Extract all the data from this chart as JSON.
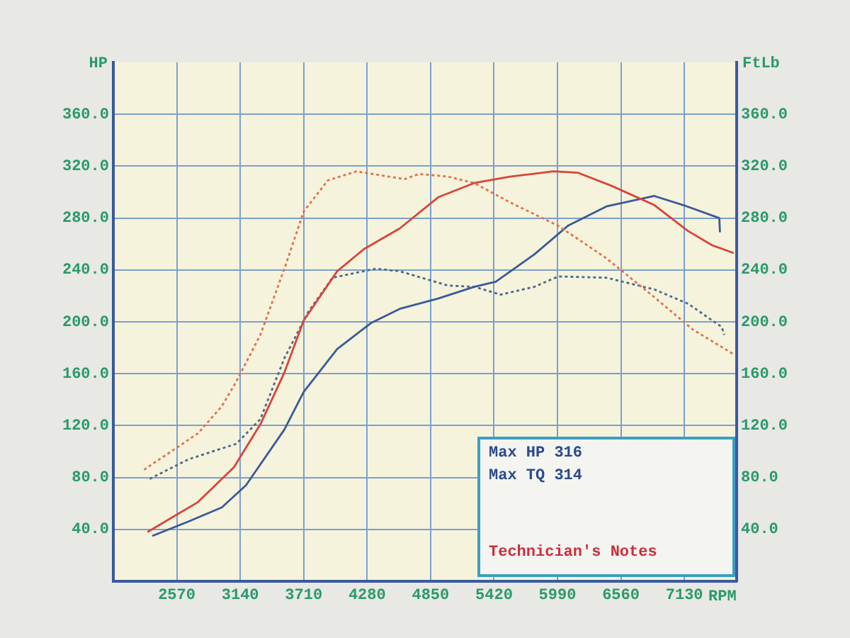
{
  "chart_data": {
    "type": "line",
    "xlabel": "RPM",
    "ylabel": "HP",
    "y2label": "FtLb",
    "xlim": [
      2000,
      7600
    ],
    "xticks": [
      2570,
      3140,
      3710,
      4280,
      4850,
      5420,
      5990,
      6560,
      7130
    ],
    "ylim": [
      0,
      400
    ],
    "yticks": [
      {
        "value": 40,
        "label": "40.0"
      },
      {
        "value": 80,
        "label": "80.0"
      },
      {
        "value": 120,
        "label": "120.0"
      },
      {
        "value": 160,
        "label": "160.0"
      },
      {
        "value": 200,
        "label": "200.0"
      },
      {
        "value": 240,
        "label": "240.0"
      },
      {
        "value": 280,
        "label": "280.0"
      },
      {
        "value": 320,
        "label": "320.0"
      },
      {
        "value": 360,
        "label": "360.0"
      }
    ],
    "y2lim": [
      0,
      400
    ],
    "y2ticks": [
      {
        "value": 40,
        "label": "40.0"
      },
      {
        "value": 80,
        "label": "80.0"
      },
      {
        "value": 120,
        "label": "120.0"
      },
      {
        "value": 160,
        "label": "160.0"
      },
      {
        "value": 200,
        "label": "200.0"
      },
      {
        "value": 240,
        "label": "240.0"
      },
      {
        "value": 280,
        "label": "280.0"
      },
      {
        "value": 320,
        "label": "320.0"
      },
      {
        "value": 360,
        "label": "360.0"
      }
    ],
    "grid": true,
    "legend": false,
    "marker": "none",
    "series": [
      {
        "color": "#d8443a",
        "line_style": "solid",
        "x": [
          2307,
          2760,
          3084,
          3321,
          3537,
          3710,
          4011,
          4250,
          4573,
          4918,
          5242,
          5566,
          5954,
          6170,
          6472,
          6860,
          7163,
          7380,
          7573
        ],
        "values": [
          38,
          61,
          88,
          121,
          161,
          201,
          239,
          256,
          272,
          296,
          307,
          312,
          316,
          315,
          305,
          290,
          270,
          259,
          253
        ]
      },
      {
        "color": "#e07050",
        "line_style": "dotted",
        "x": [
          2276,
          2760,
          2975,
          3105,
          3321,
          3537,
          3710,
          3926,
          4185,
          4616,
          4746,
          5005,
          5242,
          5566,
          5998,
          6430,
          6860,
          7207,
          7573
        ],
        "values": [
          86,
          114,
          135,
          154,
          190,
          241,
          285,
          309,
          316,
          310,
          314,
          312,
          307,
          292,
          274,
          249,
          219,
          194,
          175
        ]
      },
      {
        "color": "#3a5a9a",
        "line_style": "solid",
        "x": [
          2350,
          2674,
          2975,
          3192,
          3537,
          3710,
          4011,
          4314,
          4573,
          4918,
          5242,
          5436,
          5782,
          6083,
          6430,
          6860,
          7120,
          7444,
          7450
        ],
        "values": [
          35,
          46,
          57,
          74,
          117,
          146,
          179,
          199,
          210,
          218,
          227,
          231,
          252,
          274,
          289,
          297,
          290,
          280,
          269
        ]
      },
      {
        "color": "#4a6a8a",
        "line_style": "dotted",
        "x": [
          2328,
          2674,
          3105,
          3321,
          3537,
          3753,
          3969,
          4358,
          4573,
          5005,
          5242,
          5480,
          5782,
          5998,
          6430,
          6860,
          7163,
          7466,
          7488
        ],
        "values": [
          79,
          94,
          106,
          125,
          172,
          208,
          234,
          241,
          239,
          228,
          227,
          221,
          227,
          235,
          234,
          225,
          214,
          196,
          190
        ]
      }
    ],
    "annotations": [
      "Max HP 316",
      "Max TQ 314",
      "Technician's Notes"
    ]
  }
}
